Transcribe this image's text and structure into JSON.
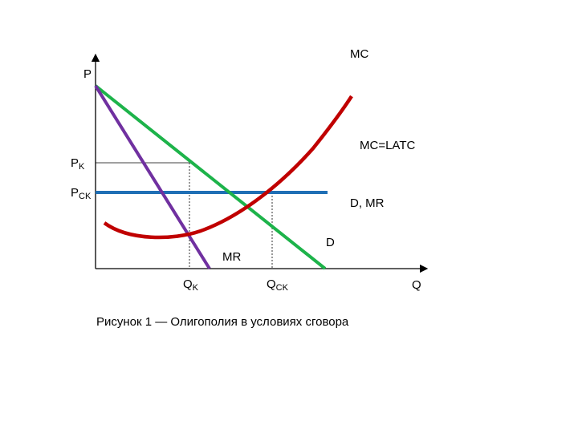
{
  "labels": {
    "p_axis": "P",
    "q_axis": "Q",
    "pk_main": "P",
    "pk_sub": "K",
    "psk_main": "P",
    "psk_sub": "CK",
    "qk_main": "Q",
    "qk_sub": "K",
    "qsk_main": "Q",
    "qsk_sub": "CK",
    "mc": "MC",
    "mc_latc": "MC=LATC",
    "d_mr": "D, MR",
    "d": "D",
    "mr": "MR"
  },
  "caption": "Рисунок 1 — Олигополия в условиях сговора",
  "colors": {
    "demand": "#1db34a",
    "marginal_revenue": "#7030a0",
    "cost_curve": "#c00000",
    "price_line": "#1f6fb5",
    "axes": "#000000"
  }
}
